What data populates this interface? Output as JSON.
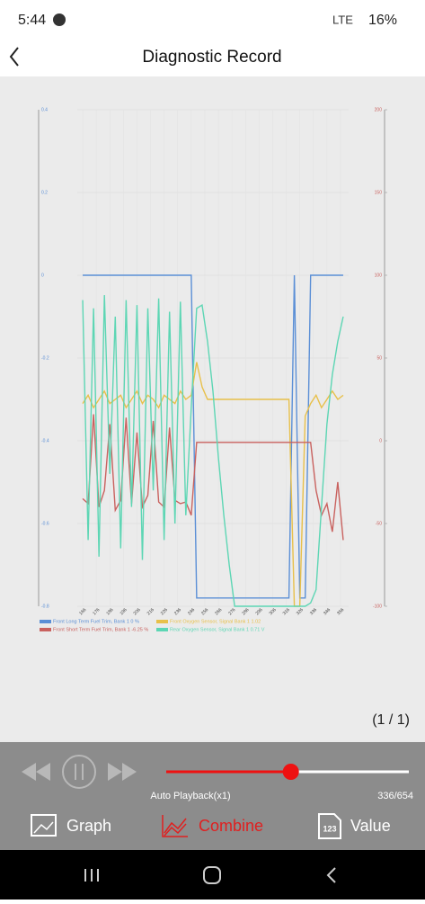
{
  "status_bar": {
    "time": "5:44",
    "network": "LTE",
    "battery": "16%"
  },
  "header": {
    "title": "Diagnostic Record"
  },
  "chart_data": {
    "type": "line",
    "x": [
      166,
      170,
      174,
      178,
      182,
      186,
      190,
      194,
      198,
      202,
      206,
      210,
      214,
      218,
      222,
      226,
      230,
      234,
      238,
      242,
      246,
      250,
      254,
      258,
      262,
      266,
      270,
      274,
      278,
      282,
      286,
      290,
      294,
      298,
      302,
      306,
      310,
      314,
      318,
      322,
      326,
      330,
      334,
      338,
      342,
      346,
      350,
      354,
      358
    ],
    "xlim": [
      162,
      362
    ],
    "xticks": [
      166,
      176,
      186,
      196,
      206,
      216,
      226,
      236,
      246,
      256,
      266,
      276,
      286,
      296,
      306,
      316,
      326,
      336,
      346,
      356
    ],
    "ylim": [
      -0.8,
      0.4
    ],
    "yticks": [
      0.4,
      0.2,
      0,
      -0.2,
      -0.4,
      -0.6,
      -0.8
    ],
    "y2lim": [
      -100,
      200
    ],
    "y2ticks": [
      200,
      150,
      100,
      50,
      0,
      -50,
      -100
    ],
    "grid": true,
    "series": [
      {
        "name": "Front Long Term Fuel Trim, Bank 1 0 %",
        "color": "#5b8fd6",
        "values": [
          0,
          0,
          0,
          0,
          0,
          0,
          0,
          0,
          0,
          0,
          0,
          0,
          0,
          0,
          0,
          0,
          0,
          0,
          0,
          0,
          0,
          -0.78,
          -0.78,
          -0.78,
          -0.78,
          -0.78,
          -0.78,
          -0.78,
          -0.78,
          -0.78,
          -0.78,
          -0.78,
          -0.78,
          -0.78,
          -0.78,
          -0.78,
          -0.78,
          -0.78,
          -0.78,
          0,
          -0.78,
          -0.78,
          0,
          0,
          0,
          0,
          0,
          0,
          0
        ]
      },
      {
        "name": "Front Oxygen Sensor, Signal Bank 1 1.02",
        "color": "#e8c04a",
        "values": [
          -0.31,
          -0.29,
          -0.32,
          -0.3,
          -0.28,
          -0.31,
          -0.3,
          -0.29,
          -0.32,
          -0.3,
          -0.28,
          -0.31,
          -0.29,
          -0.3,
          -0.32,
          -0.29,
          -0.3,
          -0.31,
          -0.28,
          -0.3,
          -0.29,
          -0.21,
          -0.27,
          -0.3,
          -0.3,
          -0.3,
          -0.3,
          -0.3,
          -0.3,
          -0.3,
          -0.3,
          -0.3,
          -0.3,
          -0.3,
          -0.3,
          -0.3,
          -0.3,
          -0.3,
          -0.3,
          -0.8,
          -0.8,
          -0.34,
          -0.31,
          -0.29,
          -0.32,
          -0.3,
          -0.28,
          -0.3,
          -0.29
        ]
      },
      {
        "name": "Front Short Term Fuel Trim, Bank 1 -6.25 %",
        "color": "#c9625f",
        "axis": "y2",
        "values": [
          -35,
          -38,
          16,
          -40,
          -30,
          10,
          -42,
          -36,
          14,
          -38,
          5,
          -40,
          -33,
          12,
          -37,
          -40,
          8,
          -36,
          -38,
          -37,
          -45,
          -1,
          -1,
          -1,
          -1,
          -1,
          -1,
          -1,
          -1,
          -1,
          -1,
          -1,
          -1,
          -1,
          -1,
          -1,
          -1,
          -1,
          -1,
          -1,
          -1,
          -1,
          -1,
          -30,
          -45,
          -38,
          -55,
          -25,
          -60
        ]
      },
      {
        "name": "Rear Oxygen Sensor, Signal Bank 1 0.71 V",
        "color": "#5dd6b4",
        "axis": "y2",
        "values": [
          85,
          -60,
          80,
          -70,
          88,
          -20,
          75,
          -65,
          85,
          -40,
          82,
          -72,
          80,
          -30,
          86,
          -60,
          78,
          -50,
          84,
          -45,
          20,
          80,
          82,
          60,
          30,
          -10,
          -45,
          -75,
          -100,
          -100,
          -100,
          -100,
          -100,
          -100,
          -100,
          -100,
          -100,
          -100,
          -100,
          -100,
          -100,
          -100,
          -98,
          -90,
          -40,
          10,
          40,
          60,
          75
        ]
      }
    ]
  },
  "page_indicator": "(1 / 1)",
  "playback": {
    "mode": "Auto Playback(x1)",
    "progress": {
      "current": 336,
      "total": 654,
      "label": "336/654"
    }
  },
  "tabs": [
    {
      "label": "Graph"
    },
    {
      "label": "Combine"
    },
    {
      "label": "Value",
      "icon": "123"
    }
  ]
}
